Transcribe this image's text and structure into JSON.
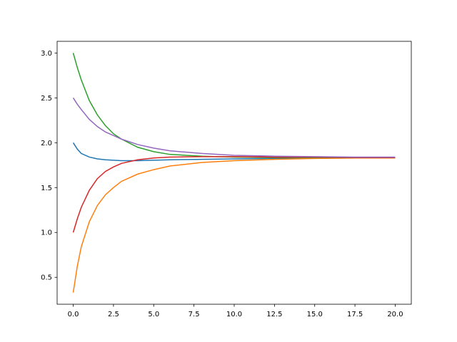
{
  "chart_data": {
    "type": "line",
    "x": [
      0,
      0.25,
      0.5,
      1,
      1.5,
      2,
      2.5,
      3,
      4,
      5,
      6,
      8,
      10,
      12.5,
      15,
      17.5,
      20
    ],
    "series": [
      {
        "color": "#1f77b4",
        "values": [
          2.0,
          1.93,
          1.88,
          1.84,
          1.82,
          1.81,
          1.805,
          1.8,
          1.8,
          1.805,
          1.81,
          1.815,
          1.82,
          1.825,
          1.83,
          1.83,
          1.83
        ]
      },
      {
        "color": "#ff7f0e",
        "values": [
          0.33,
          0.62,
          0.84,
          1.12,
          1.3,
          1.42,
          1.5,
          1.57,
          1.65,
          1.7,
          1.74,
          1.78,
          1.8,
          1.815,
          1.825,
          1.83,
          1.83
        ]
      },
      {
        "color": "#2ca02c",
        "values": [
          3.0,
          2.84,
          2.7,
          2.47,
          2.31,
          2.19,
          2.1,
          2.04,
          1.95,
          1.9,
          1.87,
          1.85,
          1.84,
          1.835,
          1.835,
          1.835,
          1.835
        ]
      },
      {
        "color": "#d62728",
        "values": [
          1.0,
          1.15,
          1.28,
          1.47,
          1.6,
          1.68,
          1.73,
          1.77,
          1.81,
          1.83,
          1.84,
          1.845,
          1.845,
          1.84,
          1.84,
          1.835,
          1.835
        ]
      },
      {
        "color": "#9467bd",
        "values": [
          2.5,
          2.43,
          2.37,
          2.26,
          2.18,
          2.12,
          2.08,
          2.04,
          1.98,
          1.94,
          1.91,
          1.88,
          1.86,
          1.85,
          1.845,
          1.84,
          1.84
        ]
      }
    ],
    "xlim": [
      -1,
      21
    ],
    "xticks": [
      {
        "value": 0,
        "label": "0.0"
      },
      2.5,
      {
        "value": 5,
        "label": "5.0"
      },
      7.5,
      {
        "value": 10,
        "label": "10.0"
      },
      12.5,
      {
        "value": 15,
        "label": "15.0"
      },
      17.5,
      {
        "value": 20,
        "label": "20.0"
      }
    ],
    "ylim": [
      0.2,
      3.13
    ],
    "yticks": [
      0.5,
      {
        "value": 1,
        "label": "1.0"
      },
      1.5,
      {
        "value": 2,
        "label": "2.0"
      },
      2.5,
      {
        "value": 3,
        "label": "3.0"
      }
    ]
  }
}
